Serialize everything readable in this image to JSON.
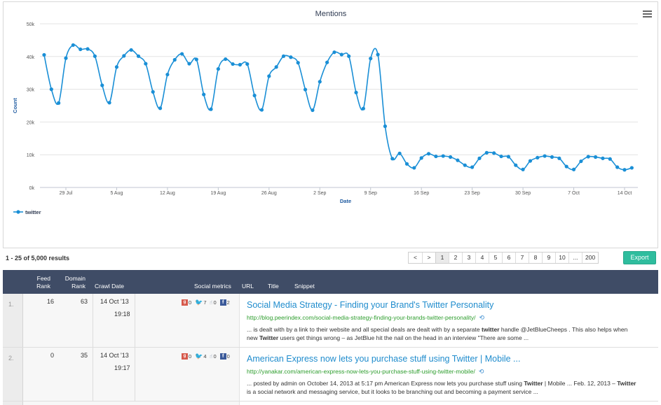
{
  "chart": {
    "menu_icon": "hamburger-menu-icon"
  },
  "chart_data": {
    "type": "line",
    "title": "Mentions",
    "xlabel": "Date",
    "ylabel": "Count",
    "ylim": [
      0,
      50000
    ],
    "yticks": [
      0,
      10000,
      20000,
      30000,
      40000,
      50000
    ],
    "ytick_labels": [
      "0k",
      "10k",
      "20k",
      "30k",
      "40k",
      "50k"
    ],
    "xticks": [
      "2013-07-29",
      "2013-08-05",
      "2013-08-12",
      "2013-08-19",
      "2013-08-26",
      "2013-09-02",
      "2013-09-09",
      "2013-09-16",
      "2013-09-23",
      "2013-09-30",
      "2013-10-07",
      "2013-10-14"
    ],
    "xtick_labels": [
      "29 Jul",
      "5 Aug",
      "12 Aug",
      "19 Aug",
      "26 Aug",
      "2 Sep",
      "9 Sep",
      "16 Sep",
      "23 Sep",
      "30 Sep",
      "7 Oct",
      "14 Oct"
    ],
    "x_start": "2013-07-26",
    "grid": true,
    "legend_position": "bottom-left",
    "color": "#1a8fd6",
    "series": [
      {
        "name": "twitter",
        "values": [
          40500,
          30000,
          25800,
          39500,
          43500,
          42200,
          42300,
          40100,
          31200,
          25900,
          36800,
          40200,
          42000,
          40100,
          37800,
          29200,
          24200,
          34500,
          39000,
          40800,
          37800,
          39100,
          28400,
          23900,
          36200,
          39200,
          37700,
          37500,
          37700,
          28100,
          23700,
          34000,
          36800,
          40100,
          39800,
          38100,
          29900,
          23600,
          32300,
          38200,
          41300,
          40600,
          40100,
          29000,
          24100,
          39400,
          40600,
          18700,
          8800,
          10400,
          7200,
          6000,
          9000,
          10300,
          9500,
          9600,
          9300,
          8300,
          6800,
          6200,
          8900,
          10600,
          10500,
          9500,
          9400,
          6800,
          5500,
          8100,
          9100,
          9600,
          9300,
          8900,
          6400,
          5500,
          8000,
          9400,
          9300,
          8900,
          8700,
          6200,
          5400,
          6000
        ]
      }
    ]
  },
  "results": {
    "count_label": "1 - 25 of 5,000 results",
    "pages": [
      "<",
      ">",
      "1",
      "2",
      "3",
      "4",
      "5",
      "6",
      "7",
      "8",
      "9",
      "10",
      "...",
      "200"
    ],
    "export_label": "Export"
  },
  "table": {
    "headers": {
      "feed_rank": "Feed Rank",
      "domain_rank": "Domain Rank",
      "crawl_date": "Crawl Date",
      "social_metrics": "Social metrics",
      "url": "URL",
      "title": "Title",
      "snippet": "Snippet"
    },
    "rows": [
      {
        "num": "1.",
        "feed_rank": "16",
        "domain_rank": "63",
        "date": "14 Oct '13",
        "time": "19:18",
        "gplus": "0",
        "twitter": "7",
        "thumbs": "0",
        "facebook": "2",
        "title": "Social Media Strategy - Finding your Brand's Twitter Personality",
        "url": "http://blog.peerindex.com/social-media-strategy-finding-your-brands-twitter-personality/",
        "snippet": [
          {
            "t": "... is dealt with by a link to their website and all special deals are dealt with by a separate ",
            "b": false
          },
          {
            "t": "twitter",
            "b": true
          },
          {
            "t": " handle @JetBlueCheeps . This also helps when new ",
            "b": false
          },
          {
            "t": "Twitter",
            "b": true
          },
          {
            "t": " users get things wrong – as JetBlue hit the nail on the head in an interview \"There are some ...",
            "b": false
          }
        ]
      },
      {
        "num": "2.",
        "feed_rank": "0",
        "domain_rank": "35",
        "date": "14 Oct '13",
        "time": "19:17",
        "gplus": "0",
        "twitter": "4",
        "thumbs": "0",
        "facebook": "0",
        "title": "American Express now lets you purchase stuff using Twitter | Mobile ...",
        "url": "http://yanakar.com/american-express-now-lets-you-purchase-stuff-using-twitter-mobile/",
        "snippet": [
          {
            "t": "... posted by admin on October 14, 2013 at 5:17 pm American Express now lets you purchase stuff using ",
            "b": false
          },
          {
            "t": "Twitter",
            "b": true
          },
          {
            "t": " | Mobile ... Feb. 12, 2013 – ",
            "b": false
          },
          {
            "t": "Twitter",
            "b": true
          },
          {
            "t": " is a social network and messaging service, but it looks to be branching out and becoming a payment service ...",
            "b": false
          }
        ]
      }
    ]
  }
}
